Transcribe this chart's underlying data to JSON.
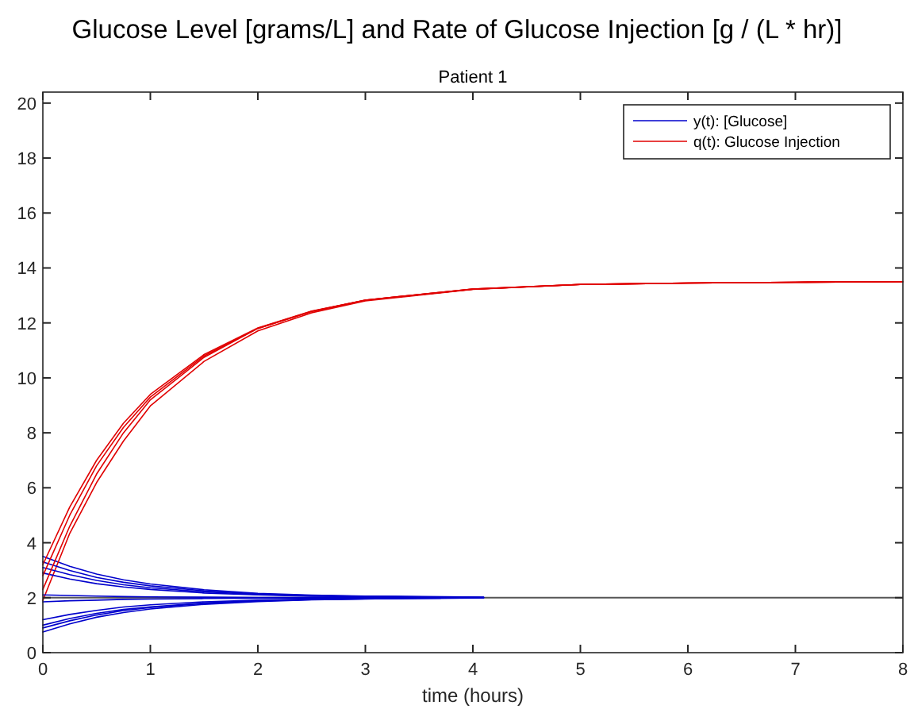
{
  "chart_data": {
    "type": "line",
    "title": "Glucose Level [grams/L] and Rate of Glucose Injection [g / (L * hr)]",
    "subtitle": "Patient 1",
    "xlabel": "time (hours)",
    "xlim": [
      0,
      8
    ],
    "xticks": [
      0,
      1,
      2,
      3,
      4,
      5,
      6,
      7,
      8
    ],
    "ylim": [
      0,
      20.4
    ],
    "yticks": [
      0,
      2,
      4,
      6,
      8,
      10,
      12,
      14,
      16,
      18,
      20
    ],
    "grid": false,
    "legend": "top right",
    "line_style": "solid",
    "marker": "none",
    "ref_lines": [
      {
        "axis": "y",
        "value": 2,
        "color": "#555555"
      }
    ],
    "series": [
      {
        "name": "y(t): [Glucose]",
        "color": "#0000cc",
        "x": [
          0,
          0.25,
          0.5,
          0.75,
          1,
          1.5,
          2,
          2.5,
          3,
          4.1
        ],
        "values": [
          3.5,
          3.14,
          2.86,
          2.65,
          2.5,
          2.29,
          2.16,
          2.09,
          2.06,
          2.02
        ]
      },
      {
        "name": "q(t): Glucose Injection",
        "color": "#e00000",
        "x": [
          0,
          0.25,
          0.5,
          0.75,
          1,
          1.5,
          2,
          2.5,
          3,
          4,
          5,
          6,
          7,
          8
        ],
        "values": [
          1.9,
          4.34,
          6.19,
          7.7,
          8.98,
          10.6,
          11.71,
          12.37,
          12.8,
          13.22,
          13.4,
          13.45,
          13.48,
          13.5
        ]
      },
      {
        "color": "#0000cc",
        "x": [
          0,
          0.25,
          0.5,
          0.75,
          1,
          1.5,
          2,
          2.5,
          3,
          4.1
        ],
        "values": [
          3.3,
          2.99,
          2.74,
          2.56,
          2.43,
          2.25,
          2.14,
          2.08,
          2.05,
          2.01
        ]
      },
      {
        "color": "#0000cc",
        "x": [
          0,
          0.25,
          0.5,
          0.75,
          1,
          1.5,
          2,
          2.5,
          3,
          4.1
        ],
        "values": [
          3.1,
          2.84,
          2.63,
          2.47,
          2.36,
          2.21,
          2.12,
          2.07,
          2.04,
          2.01
        ]
      },
      {
        "color": "#0000cc",
        "x": [
          0,
          0.25,
          0.5,
          0.75,
          1,
          1.5,
          2,
          2.5,
          3,
          4.1
        ],
        "values": [
          2.9,
          2.68,
          2.51,
          2.39,
          2.3,
          2.17,
          2.1,
          2.05,
          2.04,
          2.01
        ]
      },
      {
        "color": "#0000cc",
        "x": [
          0,
          0.25,
          0.5,
          0.75,
          1,
          1.5,
          2,
          2.5,
          3,
          4.1
        ],
        "values": [
          2.1,
          2.08,
          2.06,
          2.04,
          2.03,
          2.02,
          2.01,
          2.01,
          2.01,
          2.01
        ]
      },
      {
        "color": "#0000cc",
        "x": [
          0,
          0.25,
          0.5,
          0.75,
          1,
          1.5,
          2,
          2.5,
          3,
          4.0
        ],
        "values": [
          1.85,
          1.89,
          1.91,
          1.94,
          1.95,
          1.97,
          1.98,
          1.99,
          1.99,
          1.99
        ]
      },
      {
        "color": "#0000cc",
        "x": [
          0,
          0.25,
          0.5,
          0.75,
          1,
          1.5,
          2,
          2.5,
          3,
          4.1
        ],
        "values": [
          1.2,
          1.39,
          1.54,
          1.66,
          1.74,
          1.85,
          1.91,
          1.95,
          1.97,
          1.99
        ]
      },
      {
        "color": "#0000cc",
        "x": [
          0,
          0.25,
          0.5,
          0.75,
          1,
          1.5,
          2,
          2.5,
          3,
          3.9
        ],
        "values": [
          1.0,
          1.24,
          1.43,
          1.57,
          1.67,
          1.81,
          1.89,
          1.94,
          1.96,
          1.99
        ]
      },
      {
        "color": "#0000cc",
        "x": [
          0,
          0.25,
          0.5,
          0.75,
          1,
          1.5,
          2,
          2.5,
          3,
          3.7
        ],
        "values": [
          0.9,
          1.16,
          1.37,
          1.53,
          1.64,
          1.79,
          1.88,
          1.93,
          1.96,
          1.98
        ]
      },
      {
        "color": "#0000cc",
        "x": [
          0,
          0.25,
          0.5,
          0.75,
          1,
          1.5,
          2,
          2.5,
          3,
          3.5
        ],
        "values": [
          0.75,
          1.05,
          1.29,
          1.46,
          1.59,
          1.76,
          1.86,
          1.92,
          1.95,
          1.99
        ]
      },
      {
        "color": "#e00000",
        "x": [
          0,
          0.25,
          0.5,
          0.75,
          1,
          1.5,
          2,
          2.5,
          3,
          4,
          5,
          6,
          7,
          8
        ],
        "values": [
          2.3,
          4.6,
          6.5,
          8.0,
          9.2,
          10.75,
          11.8,
          12.42,
          12.83,
          13.23,
          13.4,
          13.45,
          13.48,
          13.5
        ]
      },
      {
        "color": "#e00000",
        "x": [
          0,
          0.25,
          0.5,
          0.75,
          1,
          1.5,
          2,
          2.5,
          3,
          4,
          5,
          6,
          7,
          8
        ],
        "values": [
          2.8,
          5.0,
          6.8,
          8.2,
          9.3,
          10.8,
          11.8,
          12.42,
          12.83,
          13.23,
          13.4,
          13.45,
          13.48,
          13.5
        ]
      },
      {
        "color": "#e00000",
        "x": [
          0,
          0.25,
          0.5,
          0.75,
          1,
          1.5,
          2,
          2.5,
          3,
          4,
          5,
          6,
          7,
          8
        ],
        "values": [
          3.2,
          5.3,
          7.0,
          8.35,
          9.4,
          10.85,
          11.82,
          12.43,
          12.83,
          13.23,
          13.4,
          13.45,
          13.48,
          13.5
        ]
      }
    ]
  }
}
